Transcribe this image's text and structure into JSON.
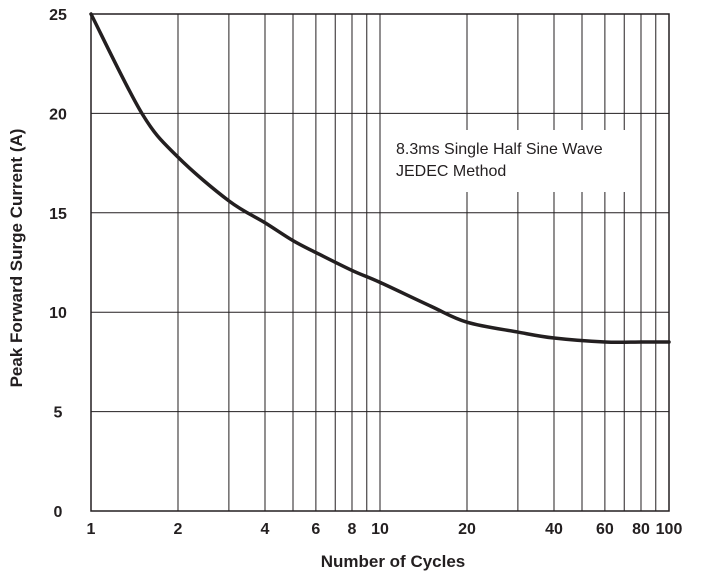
{
  "chart_data": {
    "type": "line",
    "title": "",
    "xlabel": "Number of Cycles",
    "ylabel": "Peak Forward Surge Current (A)",
    "xscale": "log",
    "xlim": [
      1,
      100
    ],
    "ylim": [
      0,
      25
    ],
    "x_ticks": [
      1,
      2,
      4,
      6,
      8,
      10,
      20,
      40,
      60,
      80,
      100
    ],
    "x_tick_labels": [
      "1",
      "2",
      "4",
      "6",
      "8",
      "10",
      "20",
      "40",
      "60",
      "80",
      "100"
    ],
    "y_ticks": [
      0,
      5,
      10,
      15,
      20,
      25
    ],
    "y_tick_labels": [
      "0",
      "5",
      "10",
      "15",
      "20",
      "25"
    ],
    "grid": true,
    "annotation": [
      "8.3ms Single Half Sine Wave",
      "JEDEC Method"
    ],
    "series": [
      {
        "color": "#231f20",
        "x": [
          1,
          1.5,
          2,
          3,
          4,
          5,
          6,
          8,
          10,
          15,
          20,
          30,
          40,
          60,
          80,
          100
        ],
        "y": [
          25,
          20,
          17.8,
          15.6,
          14.5,
          13.6,
          13.0,
          12.1,
          11.5,
          10.3,
          9.5,
          9.0,
          8.7,
          8.5,
          8.5,
          8.5
        ]
      }
    ]
  }
}
